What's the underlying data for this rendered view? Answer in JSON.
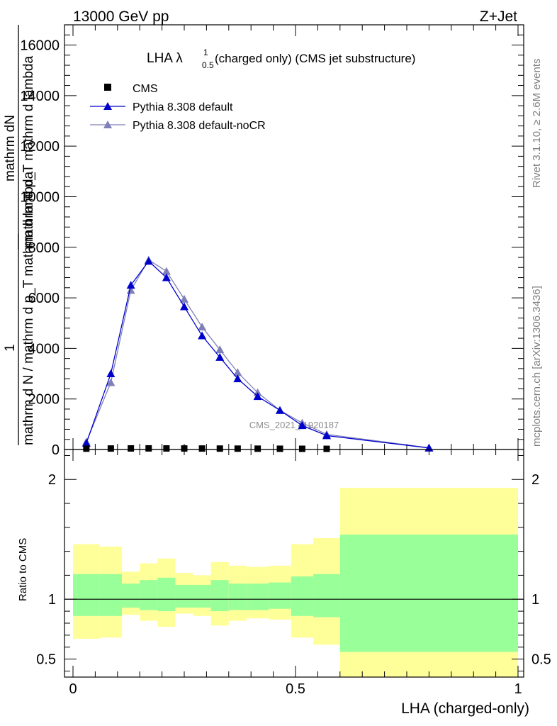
{
  "header": {
    "left": "13000 GeV pp",
    "right": "Z+Jet"
  },
  "side_labels": {
    "rivet": "Rivet 3.1.10, ≥ 2.6M events",
    "mcplots": "mcplots.cern.ch [arXiv:1306.3436]"
  },
  "watermark": "CMS_2021_I1920187",
  "colors": {
    "cms": "#000000",
    "default": "#0000cc",
    "nocr": "#8080b8",
    "band_inner": "#99ff99",
    "band_outer": "#ffff99"
  },
  "chart_data": [
    {
      "type": "line",
      "title": "LHA λ",
      "title_sup": "1",
      "title_sub": "0.5",
      "title_rest": "(charged only) (CMS jet substructure)",
      "ylabel_lines": [
        "mathrm dN",
        "mathrm d p_T mathrm d lambda",
        "1",
        "mathrm d N / mathrm d p_T mathrm d lambda"
      ],
      "xlim": [
        0,
        1
      ],
      "ylim": [
        0,
        16800
      ],
      "y_ticks": [
        0,
        2000,
        4000,
        6000,
        8000,
        10000,
        12000,
        14000,
        16000
      ],
      "y_tick_labels": [
        "0",
        "2000",
        "4000",
        "6000",
        "8000",
        "10000",
        "12000",
        "14000",
        "16000"
      ],
      "legend": [
        "CMS",
        "Pythia 8.308 default",
        "Pythia 8.308 default-noCR"
      ],
      "series": [
        {
          "name": "CMS",
          "marker": "square",
          "x": [
            0.03,
            0.085,
            0.13,
            0.17,
            0.21,
            0.25,
            0.29,
            0.33,
            0.37,
            0.415,
            0.465,
            0.515,
            0.57
          ],
          "values": [
            20,
            25,
            28,
            30,
            28,
            26,
            24,
            22,
            20,
            18,
            16,
            14,
            12
          ]
        },
        {
          "name": "Pythia 8.308 default",
          "marker": "triangle",
          "x": [
            0.03,
            0.085,
            0.13,
            0.17,
            0.21,
            0.25,
            0.29,
            0.33,
            0.37,
            0.415,
            0.465,
            0.515,
            0.57,
            0.8
          ],
          "values": [
            250,
            3000,
            6500,
            7450,
            6800,
            5650,
            4500,
            3650,
            2800,
            2100,
            1550,
            950,
            550,
            60
          ]
        },
        {
          "name": "Pythia 8.308 default-noCR",
          "marker": "triangle",
          "x": [
            0.03,
            0.085,
            0.13,
            0.17,
            0.21,
            0.25,
            0.29,
            0.33,
            0.37,
            0.415,
            0.465,
            0.515,
            0.57,
            0.8
          ],
          "values": [
            300,
            2650,
            6300,
            7500,
            7050,
            5950,
            4850,
            3950,
            3050,
            2250,
            1550,
            1050,
            600,
            70
          ]
        }
      ]
    },
    {
      "type": "area",
      "xlabel": "LHA (charged-only)",
      "ylabel": "Ratio to CMS",
      "xlim": [
        0,
        1
      ],
      "ylim": [
        0.35,
        2.25
      ],
      "x_ticks": [
        0,
        0.5,
        1
      ],
      "x_tick_labels": [
        "0",
        "0.5",
        "1"
      ],
      "y_ticks": [
        0.5,
        1,
        2
      ],
      "y_tick_labels": [
        "0.5",
        "1",
        "2"
      ],
      "bins": [
        {
          "lo": 0.0,
          "hi": 0.06,
          "inner": [
            0.86,
            1.21
          ],
          "outer": [
            0.67,
            1.46
          ]
        },
        {
          "lo": 0.06,
          "hi": 0.11,
          "inner": [
            0.86,
            1.21
          ],
          "outer": [
            0.68,
            1.44
          ]
        },
        {
          "lo": 0.11,
          "hi": 0.15,
          "inner": [
            0.93,
            1.13
          ],
          "outer": [
            0.87,
            1.23
          ]
        },
        {
          "lo": 0.15,
          "hi": 0.19,
          "inner": [
            0.91,
            1.16
          ],
          "outer": [
            0.82,
            1.3
          ]
        },
        {
          "lo": 0.19,
          "hi": 0.23,
          "inner": [
            0.9,
            1.18
          ],
          "outer": [
            0.77,
            1.34
          ]
        },
        {
          "lo": 0.23,
          "hi": 0.27,
          "inner": [
            0.93,
            1.12
          ],
          "outer": [
            0.88,
            1.22
          ]
        },
        {
          "lo": 0.27,
          "hi": 0.31,
          "inner": [
            0.93,
            1.12
          ],
          "outer": [
            0.86,
            1.2
          ]
        },
        {
          "lo": 0.31,
          "hi": 0.35,
          "inner": [
            0.9,
            1.16
          ],
          "outer": [
            0.78,
            1.31
          ]
        },
        {
          "lo": 0.35,
          "hi": 0.39,
          "inner": [
            0.91,
            1.13
          ],
          "outer": [
            0.82,
            1.28
          ]
        },
        {
          "lo": 0.39,
          "hi": 0.44,
          "inner": [
            0.91,
            1.13
          ],
          "outer": [
            0.84,
            1.27
          ]
        },
        {
          "lo": 0.44,
          "hi": 0.49,
          "inner": [
            0.92,
            1.14
          ],
          "outer": [
            0.83,
            1.28
          ]
        },
        {
          "lo": 0.49,
          "hi": 0.54,
          "inner": [
            0.86,
            1.19
          ],
          "outer": [
            0.68,
            1.46
          ]
        },
        {
          "lo": 0.54,
          "hi": 0.6,
          "inner": [
            0.85,
            1.21
          ],
          "outer": [
            0.62,
            1.51
          ]
        },
        {
          "lo": 0.6,
          "hi": 1.0,
          "inner": [
            0.56,
            1.54
          ],
          "outer": [
            0.35,
            1.93
          ]
        }
      ]
    }
  ]
}
